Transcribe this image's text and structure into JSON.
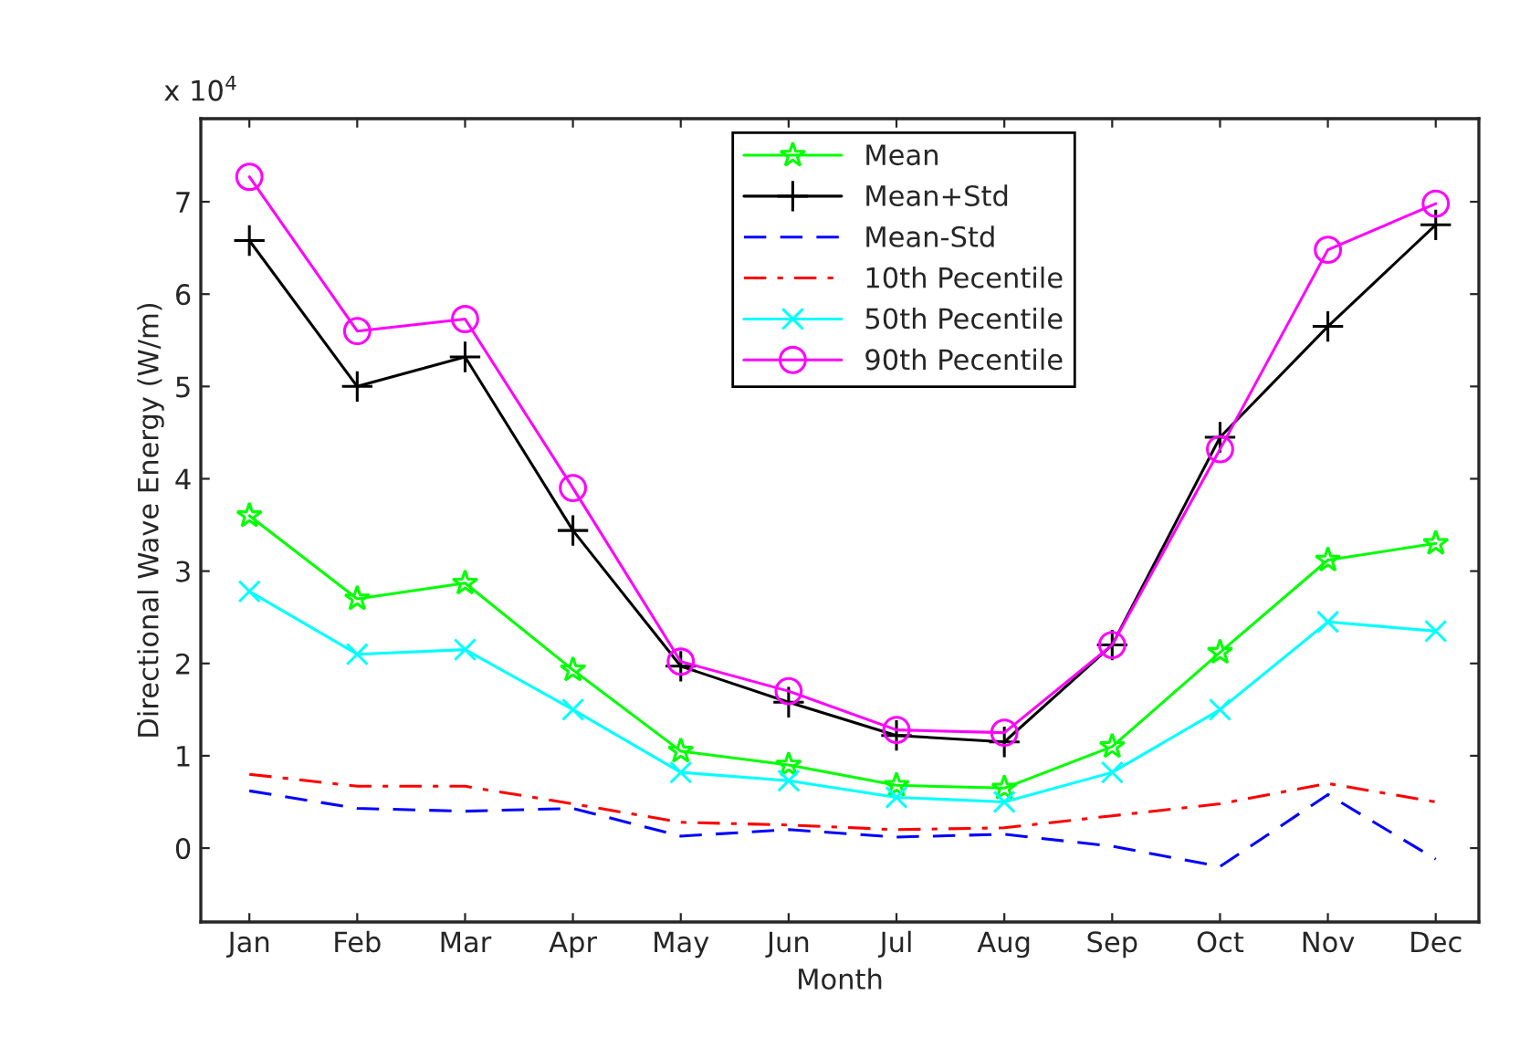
{
  "chart_data": {
    "type": "line",
    "xlabel": "Month",
    "ylabel": "Directional Wave Energy (W/m)",
    "annotations": [
      "x 10$^{4}$"
    ],
    "categories": [
      "Jan",
      "Feb",
      "Mar",
      "Apr",
      "May",
      "Jun",
      "Jul",
      "Aug",
      "Sep",
      "Oct",
      "Nov",
      "Dec"
    ],
    "ylim": [
      -0.8,
      7.9
    ],
    "yticks": [
      0,
      1,
      2,
      3,
      4,
      5,
      6,
      7
    ],
    "grid": false,
    "legend": "top",
    "series": [
      {
        "name": "Mean",
        "color": "#00ff00",
        "marker": "star",
        "line_style": "solid",
        "values": [
          3.6,
          2.7,
          2.87,
          1.93,
          1.05,
          0.9,
          0.68,
          0.65,
          1.1,
          2.12,
          3.12,
          3.3
        ]
      },
      {
        "name": "Mean+Std",
        "color": "#000000",
        "marker": "plus",
        "line_style": "solid",
        "values": [
          6.58,
          5.0,
          5.32,
          3.44,
          1.97,
          1.58,
          1.22,
          1.15,
          2.2,
          4.45,
          5.65,
          6.75
        ]
      },
      {
        "name": "Mean-Std",
        "color": "#0000ff",
        "marker": "none",
        "line_style": "dashed",
        "values": [
          0.62,
          0.43,
          0.4,
          0.43,
          0.13,
          0.2,
          0.12,
          0.15,
          0.02,
          -0.2,
          0.58,
          -0.12
        ]
      },
      {
        "name": "10th Pecentile",
        "color": "#ff0000",
        "marker": "none",
        "line_style": "dashdot",
        "values": [
          0.8,
          0.67,
          0.67,
          0.48,
          0.28,
          0.25,
          0.2,
          0.22,
          0.35,
          0.48,
          0.7,
          0.5
        ]
      },
      {
        "name": "50th Pecentile",
        "color": "#00ffff",
        "marker": "cross",
        "line_style": "solid",
        "values": [
          2.78,
          2.1,
          2.15,
          1.5,
          0.82,
          0.73,
          0.55,
          0.5,
          0.82,
          1.5,
          2.45,
          2.35
        ]
      },
      {
        "name": "90th Pecentile",
        "color": "#ff00ff",
        "marker": "circle",
        "line_style": "solid",
        "values": [
          7.27,
          5.6,
          5.73,
          3.9,
          2.02,
          1.7,
          1.28,
          1.25,
          2.2,
          4.32,
          6.48,
          6.98
        ]
      }
    ]
  }
}
